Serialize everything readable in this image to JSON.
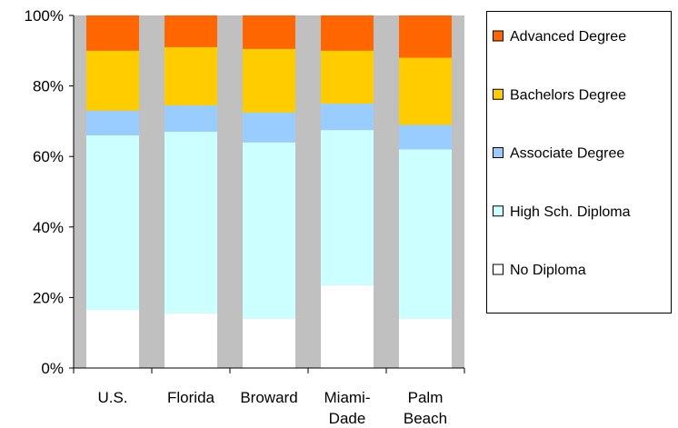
{
  "chart_data": {
    "type": "bar",
    "stacked": "percent",
    "categories": [
      [
        "U.S."
      ],
      [
        "Florida"
      ],
      [
        "Broward"
      ],
      [
        "Miami-",
        "Dade"
      ],
      [
        "Palm",
        "Beach"
      ]
    ],
    "series": [
      {
        "name": "No Diploma",
        "color": "#ffffff",
        "values": [
          16.5,
          15.5,
          14,
          23.5,
          14
        ]
      },
      {
        "name": "High Sch. Diploma",
        "color": "#ccffff",
        "values": [
          49.5,
          51.5,
          50,
          44,
          48
        ]
      },
      {
        "name": "Associate Degree",
        "color": "#99ccff",
        "values": [
          7,
          7.5,
          8.5,
          7.5,
          7
        ]
      },
      {
        "name": "Bachelors Degree",
        "color": "#ffcc00",
        "values": [
          17,
          16.5,
          18,
          15,
          19
        ]
      },
      {
        "name": "Advanced Degree",
        "color": "#ff6600",
        "values": [
          10,
          9,
          9.5,
          10,
          12
        ]
      }
    ],
    "y_ticks": [
      "0%",
      "20%",
      "40%",
      "60%",
      "80%",
      "100%"
    ],
    "ylim": [
      0,
      100
    ],
    "plot_background": "#c0c0c0",
    "legend_position": "right",
    "title": "",
    "xlabel": "",
    "ylabel": ""
  }
}
